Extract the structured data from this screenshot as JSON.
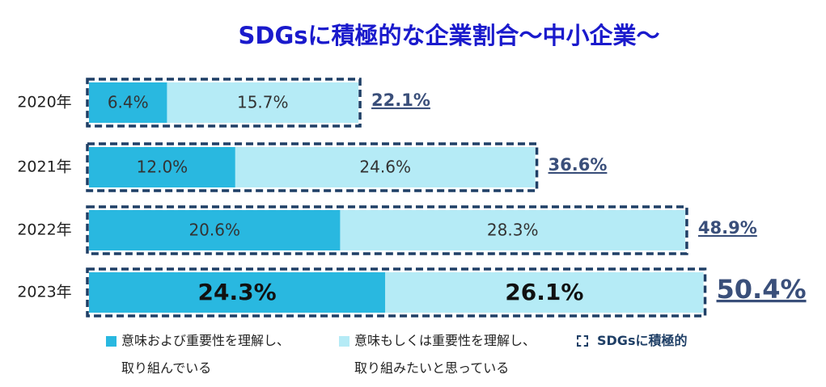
{
  "chart_data": {
    "type": "stacked-bar",
    "orientation": "horizontal",
    "title": "SDGsに積極的な企業割合～中小企業～",
    "categories": [
      "2020年",
      "2021年",
      "2022年",
      "2023年"
    ],
    "series": [
      {
        "name": "意味および重要性を理解し、\n取り組んでいる",
        "color": "#29b8e0",
        "values": [
          6.4,
          12.0,
          20.6,
          24.3
        ],
        "value_labels": [
          "6.4%",
          "12.0%",
          "20.6%",
          "24.3%"
        ]
      },
      {
        "name": "意味もしくは重要性を理解し、\n取り組みたいと思っている",
        "color": "#b5ebf6",
        "values": [
          15.7,
          24.6,
          28.3,
          26.1
        ],
        "value_labels": [
          "15.7%",
          "24.6%",
          "28.3%",
          "26.1%"
        ]
      }
    ],
    "totals": {
      "name": "SDGsに積極的",
      "color": "#1f3f66",
      "values": [
        22.1,
        36.6,
        48.9,
        50.4
      ],
      "value_labels": [
        "22.1%",
        "36.6%",
        "48.9%",
        "50.4%"
      ]
    }
  }
}
